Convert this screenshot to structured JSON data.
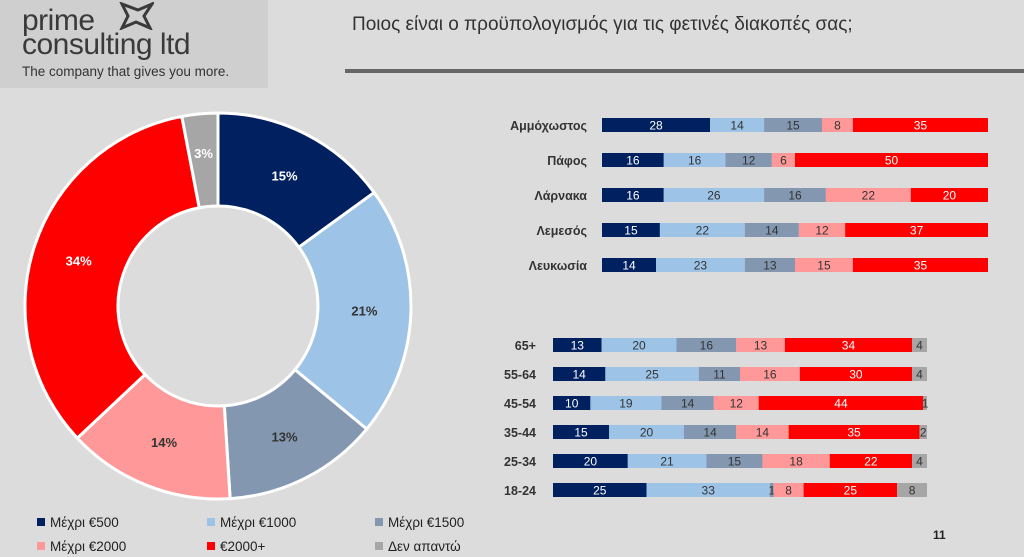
{
  "logo": {
    "line1": "prime",
    "line2": "consulting ltd",
    "tagline": "The company that gives you more."
  },
  "title": "Ποιος είναι ο προϋπολογισμός για τις φετινές διακοπές σας;",
  "page_number": "11",
  "colors": {
    "m500": "#002060",
    "m1000": "#9dc3e6",
    "m1500": "#8497b0",
    "m2000": "#ff9999",
    "m2000plus": "#ff0000",
    "dk": "#a6a6a6"
  },
  "legend": [
    {
      "label": "Μέχρι €500",
      "color": "#002060"
    },
    {
      "label": "Μέχρι €1000",
      "color": "#9dc3e6"
    },
    {
      "label": "Μέχρι €1500",
      "color": "#8497b0"
    },
    {
      "label": "Μέχρι €2000",
      "color": "#ff9999"
    },
    {
      "label": "€2000+",
      "color": "#ff0000"
    },
    {
      "label": "Δεν απαντώ",
      "color": "#a6a6a6"
    }
  ],
  "chart_data": [
    {
      "type": "pie",
      "donut": true,
      "categories": [
        "Μέχρι €500",
        "Μέχρι €1000",
        "Μέχρι €1500",
        "Μέχρι €2000",
        "€2000+",
        "Δεν απαντώ"
      ],
      "values": [
        15,
        21,
        13,
        14,
        34,
        3
      ],
      "labels": [
        "15%",
        "21%",
        "13%",
        "14%",
        "34%",
        "3%"
      ]
    },
    {
      "type": "bar",
      "orientation": "horizontal",
      "stacked": true,
      "categories": [
        "Αμμόχωστος",
        "Πάφος",
        "Λάρνακα",
        "Λεμεσός",
        "Λευκωσία"
      ],
      "series": [
        {
          "name": "Μέχρι €500",
          "values": [
            28,
            16,
            16,
            15,
            14
          ]
        },
        {
          "name": "Μέχρι €1000",
          "values": [
            14,
            16,
            26,
            22,
            23
          ]
        },
        {
          "name": "Μέχρι €1500",
          "values": [
            15,
            12,
            16,
            14,
            13
          ]
        },
        {
          "name": "Μέχρι €2000",
          "values": [
            8,
            6,
            22,
            12,
            15
          ]
        },
        {
          "name": "€2000+",
          "values": [
            35,
            50,
            20,
            37,
            35
          ]
        }
      ]
    },
    {
      "type": "bar",
      "orientation": "horizontal",
      "stacked": true,
      "categories": [
        "65+",
        "55-64",
        "45-54",
        "35-44",
        "25-34",
        "18-24"
      ],
      "series": [
        {
          "name": "Μέχρι €500",
          "values": [
            13,
            14,
            10,
            15,
            20,
            25
          ]
        },
        {
          "name": "Μέχρι €1000",
          "values": [
            20,
            25,
            19,
            20,
            21,
            33
          ]
        },
        {
          "name": "Μέχρι €1500",
          "values": [
            16,
            11,
            14,
            14,
            15,
            1
          ]
        },
        {
          "name": "Μέχρι €2000",
          "values": [
            13,
            16,
            12,
            14,
            18,
            8
          ]
        },
        {
          "name": "€2000+",
          "values": [
            34,
            30,
            44,
            35,
            22,
            25
          ]
        },
        {
          "name": "Δεν απαντώ",
          "values": [
            4,
            4,
            1,
            2,
            4,
            8
          ]
        }
      ]
    }
  ]
}
